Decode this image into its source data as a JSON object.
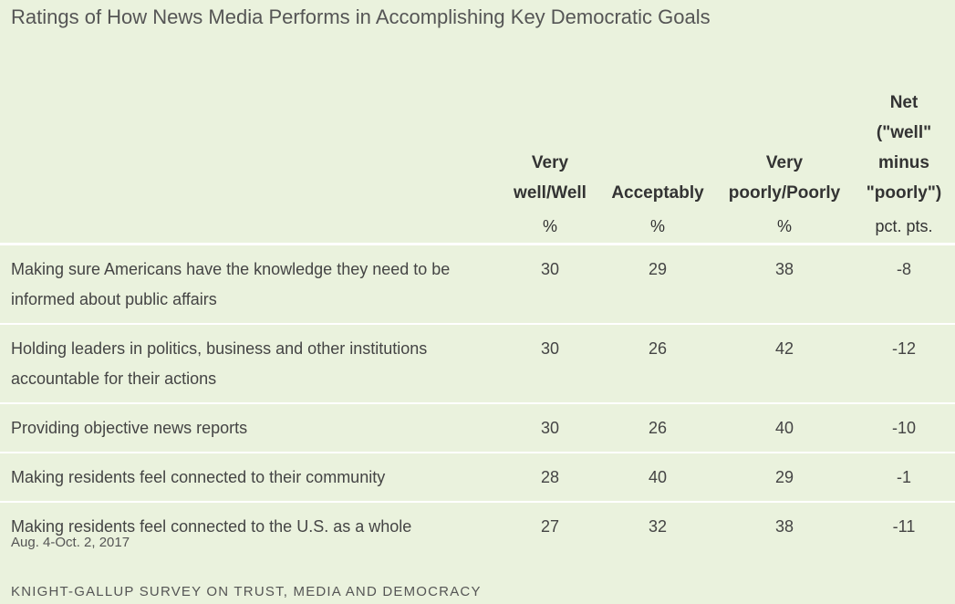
{
  "chart_data": {
    "type": "table",
    "title": "Ratings of How News Media Performs in Accomplishing Key Democratic Goals",
    "columns": [
      {
        "label_lines": [
          "Very",
          "well/Well"
        ],
        "unit": "%"
      },
      {
        "label_lines": [
          "Acceptably"
        ],
        "unit": "%"
      },
      {
        "label_lines": [
          "Very",
          "poorly/Poorly"
        ],
        "unit": "%"
      },
      {
        "label_lines": [
          "Net",
          "(\"well\"",
          "minus",
          "\"poorly\")"
        ],
        "unit": "pct. pts."
      }
    ],
    "rows": [
      {
        "label": "Making sure Americans have the knowledge they need to be informed about public affairs",
        "values": [
          "30",
          "29",
          "38",
          "-8"
        ]
      },
      {
        "label": "Holding leaders in politics, business and other institutions accountable for their actions",
        "values": [
          "30",
          "26",
          "42",
          "-12"
        ]
      },
      {
        "label": "Providing objective news reports",
        "values": [
          "30",
          "26",
          "40",
          "-10"
        ]
      },
      {
        "label": "Making residents feel connected to their community",
        "values": [
          "28",
          "40",
          "29",
          "-1"
        ]
      },
      {
        "label": "Making residents feel connected to the U.S. as a whole",
        "values": [
          "27",
          "32",
          "38",
          "-11"
        ]
      }
    ]
  },
  "footer": {
    "date": "Aug. 4-Oct. 2, 2017",
    "source": "KNIGHT-GALLUP SURVEY ON TRUST, MEDIA AND DEMOCRACY"
  },
  "colors": {
    "background": "#eaf2dd",
    "divider": "#ffffff"
  }
}
